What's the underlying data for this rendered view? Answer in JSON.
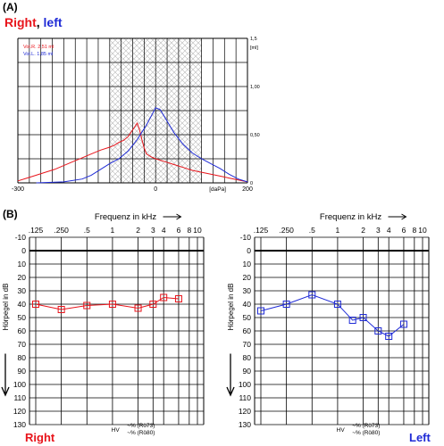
{
  "panel_a": {
    "label": "(A)",
    "title_right": "Right",
    "title_sep": ", ",
    "title_left": "left",
    "legend_right": "Vol.R. 2,51 ml",
    "legend_left": "Vol.L. 1,85 ml",
    "x_ticks": [
      {
        "v": -300,
        "t": "-300"
      },
      {
        "v": 0,
        "t": "0"
      },
      {
        "v": 200,
        "t": "200"
      }
    ],
    "x_unit": "[daPa]",
    "y_ticks": [
      {
        "v": 1.5,
        "t": "1,5"
      },
      {
        "v": 1.0,
        "t": "1,00"
      },
      {
        "v": 0.5,
        "t": "0,50"
      },
      {
        "v": 0,
        "t": "0"
      }
    ],
    "y_unit": "[ml]"
  },
  "panel_b": {
    "label": "(B)",
    "x_title": "Frequenz in kHz",
    "x_ticks": [
      ".125",
      ".250",
      ".5",
      "1",
      "2",
      "3",
      "4",
      "6",
      "8",
      "10"
    ],
    "y_ticks": [
      "-10",
      "0",
      "10",
      "20",
      "30",
      "40",
      "50",
      "60",
      "70",
      "80",
      "90",
      "100",
      "110",
      "120",
      "130"
    ],
    "y_title": "Hörpegel in dB",
    "foot_hv": "HV",
    "foot_r673": "~% (Rö73)",
    "foot_r680": "~% (Rö80)",
    "caption_right": "Right",
    "caption_left": "Left"
  },
  "colors": {
    "right": "#e8141b",
    "left": "#1f2bd6",
    "caption": "#e8141b",
    "caption_left": "#1f2bd6"
  },
  "chart_data": [
    {
      "type": "line",
      "name": "tympanogram",
      "xlim": [
        -300,
        200
      ],
      "ylim": [
        0,
        1.5
      ],
      "series": [
        {
          "name": "Right",
          "color": "#e8141b",
          "x": [
            -300,
            -280,
            -260,
            -240,
            -220,
            -200,
            -180,
            -160,
            -140,
            -120,
            -100,
            -90,
            -80,
            -70,
            -60,
            -50,
            -40,
            -35,
            -30,
            -25,
            -20,
            -10,
            0,
            20,
            40,
            60,
            80,
            100,
            120,
            140,
            160,
            180,
            200
          ],
          "y": [
            0.02,
            0.05,
            0.08,
            0.11,
            0.14,
            0.18,
            0.22,
            0.26,
            0.3,
            0.34,
            0.37,
            0.39,
            0.42,
            0.44,
            0.48,
            0.55,
            0.62,
            0.55,
            0.45,
            0.36,
            0.3,
            0.27,
            0.25,
            0.22,
            0.19,
            0.16,
            0.13,
            0.11,
            0.09,
            0.07,
            0.05,
            0.03,
            0.01
          ]
        },
        {
          "name": "Left",
          "color": "#1f2bd6",
          "x": [
            -260,
            -200,
            -160,
            -140,
            -120,
            -100,
            -80,
            -60,
            -40,
            -20,
            0,
            10,
            20,
            40,
            60,
            80,
            100,
            120,
            140,
            160,
            180,
            200
          ],
          "y": [
            0,
            0.01,
            0.04,
            0.08,
            0.14,
            0.2,
            0.25,
            0.33,
            0.45,
            0.6,
            0.78,
            0.76,
            0.68,
            0.52,
            0.4,
            0.31,
            0.25,
            0.2,
            0.15,
            0.09,
            0.04,
            0.01
          ]
        }
      ]
    },
    {
      "type": "line",
      "name": "audiogram-right",
      "x_categories": [
        ".125",
        ".250",
        ".5",
        "1",
        "2",
        "3",
        "4",
        "6",
        "8",
        "10"
      ],
      "ylim": [
        -10,
        130
      ],
      "series": [
        {
          "name": "Right",
          "color": "#e8141b",
          "x": [
            ".125",
            ".250",
            ".5",
            "1",
            "2",
            "3",
            "4",
            "6"
          ],
          "y": [
            40,
            44,
            41,
            40,
            43,
            40,
            35,
            36
          ]
        }
      ]
    },
    {
      "type": "line",
      "name": "audiogram-left",
      "x_categories": [
        ".125",
        ".250",
        ".5",
        "1",
        "2",
        "3",
        "4",
        "6",
        "8",
        "10"
      ],
      "ylim": [
        -10,
        130
      ],
      "series": [
        {
          "name": "Left",
          "color": "#1f2bd6",
          "x": [
            ".125",
            ".250",
            ".5",
            "1",
            "1.5",
            "2",
            "3",
            "4",
            "6"
          ],
          "y": [
            45,
            40,
            33,
            40,
            52,
            50,
            60,
            64,
            55
          ]
        }
      ]
    }
  ]
}
